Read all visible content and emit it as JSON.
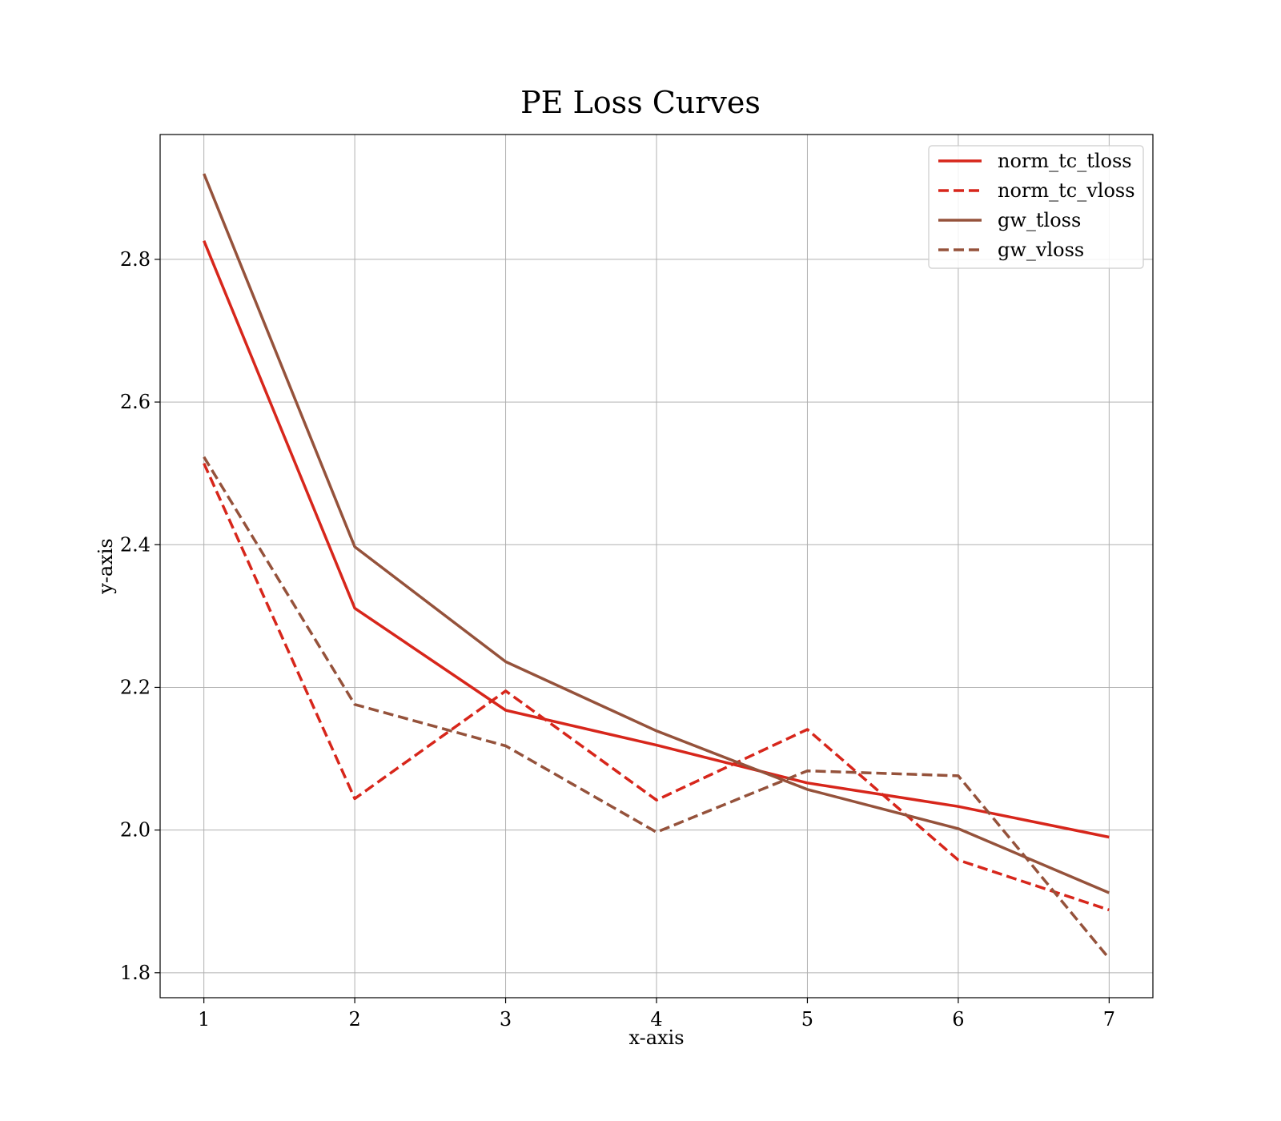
{
  "chart_data": {
    "type": "line",
    "title": "PE Loss Curves",
    "xlabel": "x-axis",
    "ylabel": "y-axis",
    "x": [
      1,
      2,
      3,
      4,
      5,
      6,
      7
    ],
    "xticks": [
      "1",
      "2",
      "3",
      "4",
      "5",
      "6",
      "7"
    ],
    "yticks": [
      "1.8",
      "2.0",
      "2.2",
      "2.4",
      "2.6",
      "2.8"
    ],
    "ytick_values": [
      1.8,
      2.0,
      2.2,
      2.4,
      2.6,
      2.8
    ],
    "xlim": [
      0.71,
      7.29
    ],
    "ylim": [
      1.765,
      2.975
    ],
    "grid": true,
    "legend_position": "top-right",
    "series": [
      {
        "name": "norm_tc_tloss",
        "color": "#d7261b",
        "style": "solid",
        "values": [
          2.826,
          2.311,
          2.168,
          2.119,
          2.066,
          2.033,
          1.99
        ]
      },
      {
        "name": "norm_tc_vloss",
        "color": "#d7261b",
        "style": "dashed",
        "values": [
          2.514,
          2.044,
          2.195,
          2.042,
          2.141,
          1.958,
          1.888
        ]
      },
      {
        "name": "gw_tloss",
        "color": "#95523b",
        "style": "solid",
        "values": [
          2.92,
          2.397,
          2.236,
          2.139,
          2.057,
          2.002,
          1.912
        ]
      },
      {
        "name": "gw_vloss",
        "color": "#95523b",
        "style": "dashed",
        "values": [
          2.523,
          2.176,
          2.118,
          1.997,
          2.083,
          2.076,
          1.82
        ]
      }
    ]
  }
}
